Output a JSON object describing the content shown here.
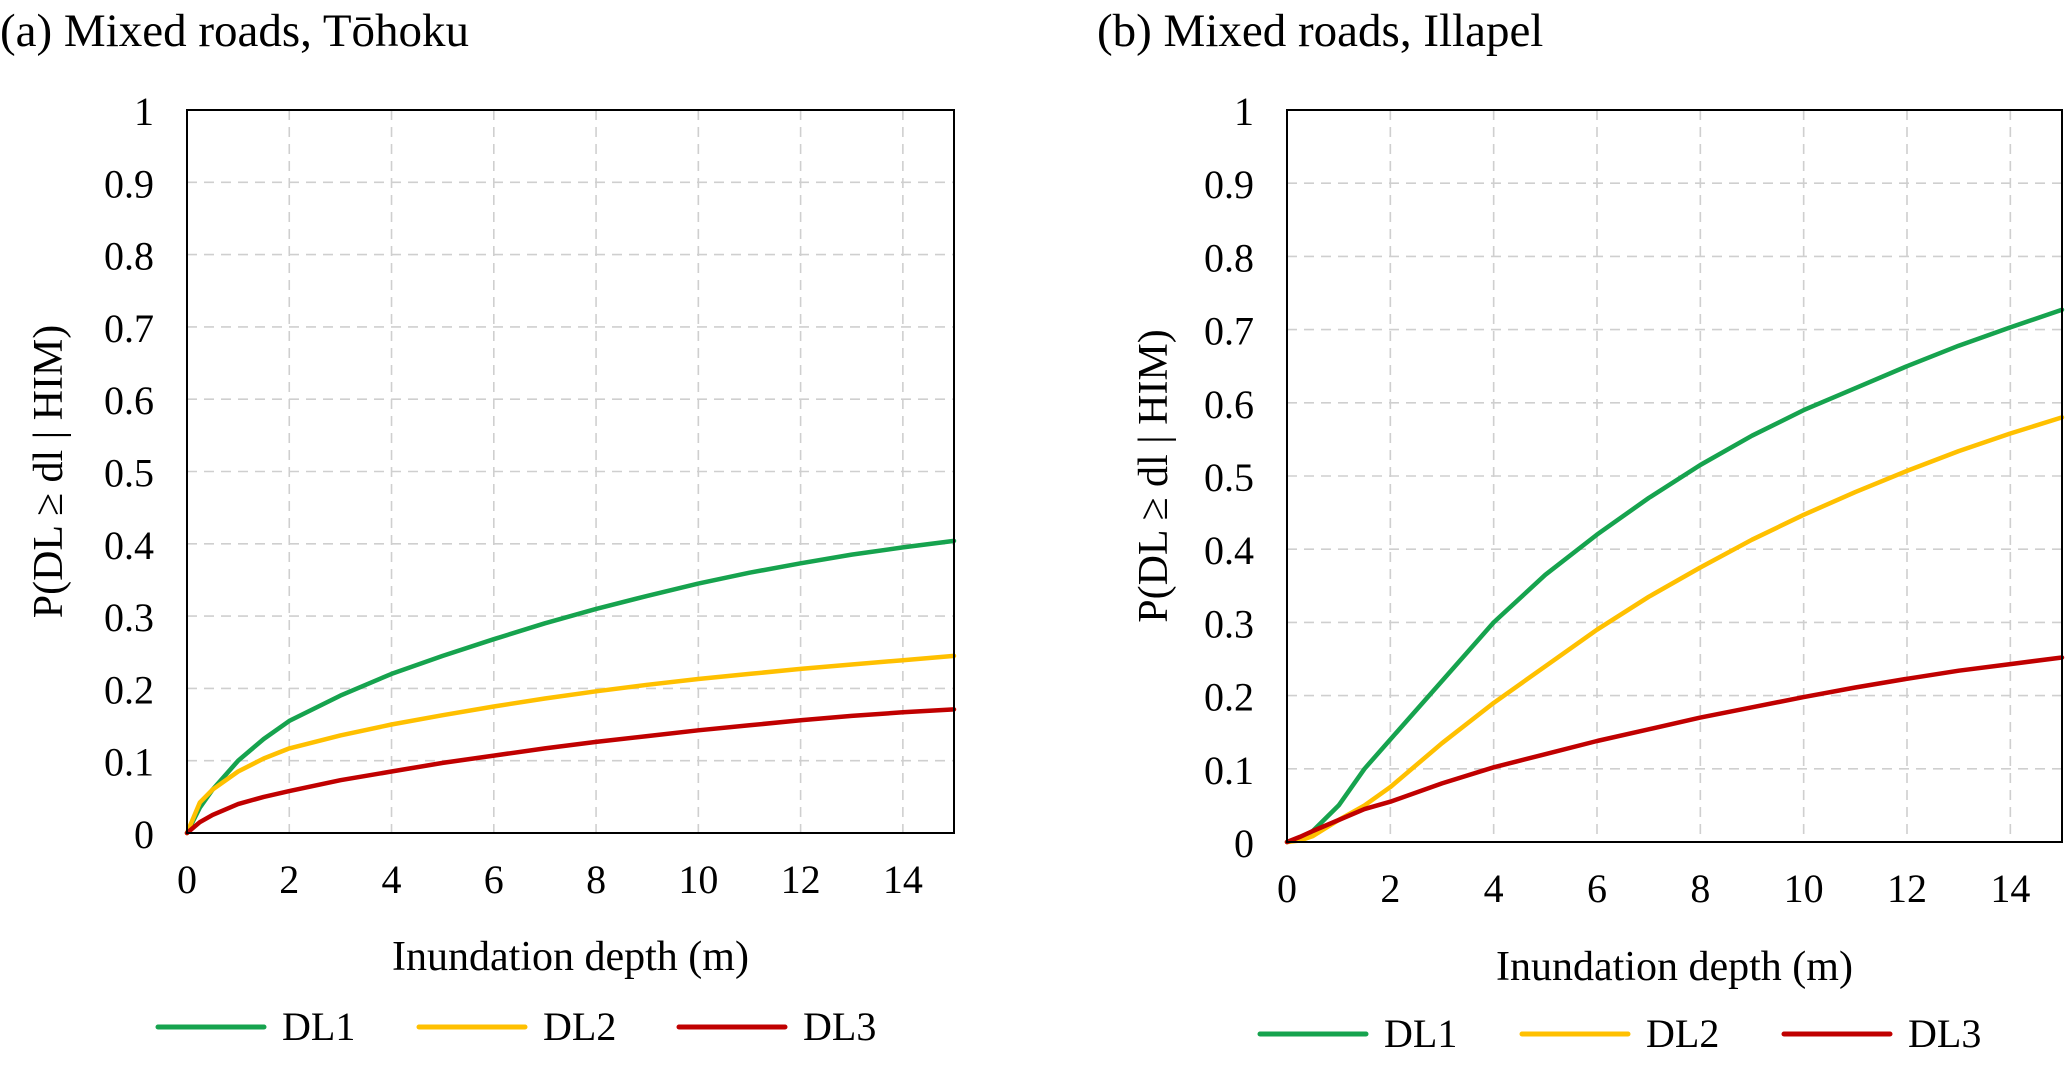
{
  "figure_type": "fragility curves",
  "chart_data": [
    {
      "type": "line",
      "title": "(a) Mixed roads, Tōhoku",
      "xlabel": "Inundation depth (m)",
      "ylabel": "P(DL ≥ dl | HIM)",
      "xlim": [
        0,
        15
      ],
      "ylim": [
        0,
        1
      ],
      "xticks": [
        0,
        2,
        4,
        6,
        8,
        10,
        12,
        14
      ],
      "yticks": [
        0,
        0.1,
        0.2,
        0.3,
        0.4,
        0.5,
        0.6,
        0.7,
        0.8,
        0.9,
        1
      ],
      "ytick_labels": [
        "0",
        "0.1",
        "0.2",
        "0.3",
        "0.4",
        "0.5",
        "0.6",
        "0.7",
        "0.8",
        "0.9",
        "1"
      ],
      "grid": true,
      "legend": "bottom",
      "x": [
        0,
        0.25,
        0.5,
        1,
        1.5,
        2,
        3,
        4,
        5,
        6,
        7,
        8,
        9,
        10,
        11,
        12,
        13,
        14,
        15
      ],
      "series": [
        {
          "name": "DL1",
          "color": "#16a34e",
          "values": [
            0,
            0.035,
            0.06,
            0.1,
            0.13,
            0.155,
            0.19,
            0.22,
            0.245,
            0.268,
            0.29,
            0.31,
            0.328,
            0.345,
            0.36,
            0.373,
            0.385,
            0.395,
            0.404
          ]
        },
        {
          "name": "DL2",
          "color": "#ffc000",
          "values": [
            0,
            0.042,
            0.06,
            0.085,
            0.103,
            0.117,
            0.135,
            0.15,
            0.163,
            0.175,
            0.186,
            0.196,
            0.205,
            0.213,
            0.22,
            0.227,
            0.233,
            0.239,
            0.245
          ]
        },
        {
          "name": "DL3",
          "color": "#c00000",
          "values": [
            0,
            0.015,
            0.025,
            0.04,
            0.05,
            0.058,
            0.073,
            0.085,
            0.097,
            0.107,
            0.117,
            0.126,
            0.134,
            0.142,
            0.149,
            0.156,
            0.162,
            0.167,
            0.171
          ]
        }
      ]
    },
    {
      "type": "line",
      "title": "(b) Mixed roads, Illapel",
      "xlabel": "Inundation depth (m)",
      "ylabel": "P(DL ≥ dl | HIM)",
      "xlim": [
        0,
        15
      ],
      "ylim": [
        0,
        1
      ],
      "xticks": [
        0,
        2,
        4,
        6,
        8,
        10,
        12,
        14
      ],
      "yticks": [
        0,
        0.1,
        0.2,
        0.3,
        0.4,
        0.5,
        0.6,
        0.7,
        0.8,
        0.9,
        1
      ],
      "ytick_labels": [
        "0",
        "0.1",
        "0.2",
        "0.3",
        "0.4",
        "0.5",
        "0.6",
        "0.7",
        "0.8",
        "0.9",
        "1"
      ],
      "grid": true,
      "legend": "bottom",
      "x": [
        0,
        0.25,
        0.5,
        1,
        1.5,
        2,
        3,
        4,
        5,
        6,
        7,
        8,
        9,
        10,
        11,
        12,
        13,
        14,
        15
      ],
      "series": [
        {
          "name": "DL1",
          "color": "#16a34e",
          "values": [
            0,
            0.003,
            0.015,
            0.05,
            0.1,
            0.14,
            0.22,
            0.3,
            0.365,
            0.42,
            0.47,
            0.515,
            0.555,
            0.59,
            0.62,
            0.65,
            0.678,
            0.703,
            0.727
          ]
        },
        {
          "name": "DL2",
          "color": "#ffc000",
          "values": [
            0,
            0.002,
            0.008,
            0.03,
            0.05,
            0.075,
            0.135,
            0.19,
            0.24,
            0.29,
            0.335,
            0.375,
            0.413,
            0.447,
            0.478,
            0.507,
            0.534,
            0.558,
            0.58
          ]
        },
        {
          "name": "DL3",
          "color": "#c00000",
          "values": [
            0,
            0.007,
            0.015,
            0.03,
            0.045,
            0.055,
            0.08,
            0.102,
            0.12,
            0.138,
            0.154,
            0.17,
            0.184,
            0.198,
            0.211,
            0.223,
            0.234,
            0.243,
            0.252
          ]
        }
      ]
    }
  ]
}
